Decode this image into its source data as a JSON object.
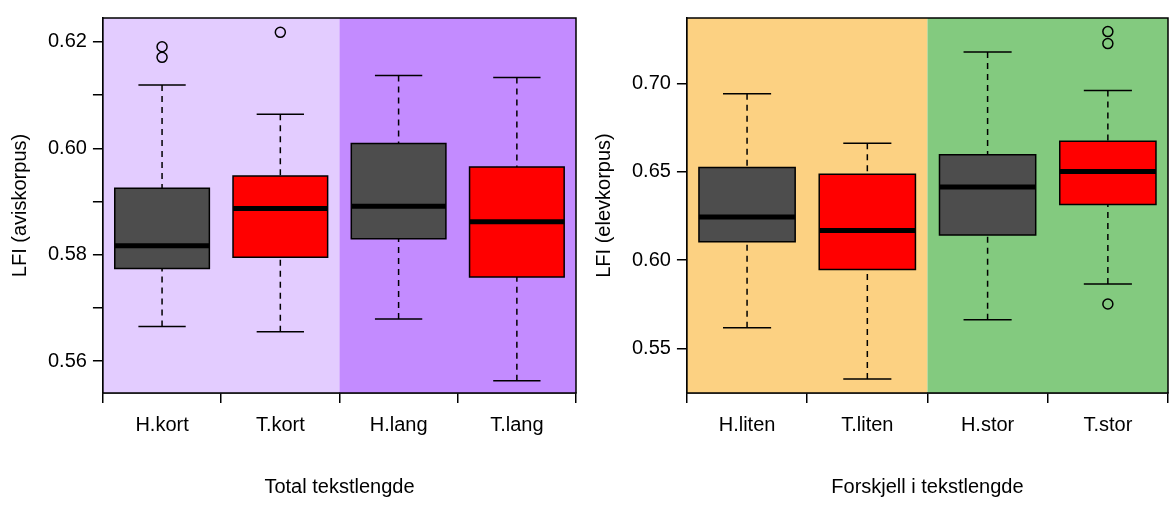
{
  "chart_data": [
    {
      "type": "box",
      "categories": [
        "H.kort",
        "T.kort",
        "H.lang",
        "T.lang"
      ],
      "boxes": [
        {
          "low": 0.5665,
          "q1": 0.5774,
          "median": 0.5817,
          "q3": 0.5925,
          "high": 0.6119,
          "outliers": [
            0.6171,
            0.6191
          ]
        },
        {
          "low": 0.5655,
          "q1": 0.5795,
          "median": 0.5887,
          "q3": 0.5948,
          "high": 0.6064,
          "outliers": [
            0.6218
          ]
        },
        {
          "low": 0.5679,
          "q1": 0.583,
          "median": 0.5891,
          "q3": 0.6009,
          "high": 0.6137
        },
        {
          "low": 0.5563,
          "q1": 0.5758,
          "median": 0.5862,
          "q3": 0.5965,
          "high": 0.6133
        }
      ],
      "colors": [
        "#4d4d4d",
        "#ff0000",
        "#4d4d4d",
        "#ff0000"
      ],
      "line_style": "dashed",
      "xlabel": "Total tekstlengde",
      "ylabel": "LFI (aviskorpus)",
      "ylim": [
        0.554,
        0.6245
      ],
      "yticks": [
        0.56,
        {
          "value": 0.57,
          "label": null
        },
        0.58,
        {
          "value": 0.59,
          "label": null
        },
        {
          "value": 0.6,
          "label": "0.60"
        },
        {
          "value": 0.61,
          "label": null
        },
        0.62
      ],
      "bands": [
        {
          "axis": "x",
          "from": "H.kort",
          "to": "T.kort",
          "color": "#e3ccff"
        },
        {
          "axis": "x",
          "from": "H.lang",
          "to": "T.lang",
          "color": "#c38bff"
        }
      ]
    },
    {
      "type": "box",
      "categories": [
        "H.liten",
        "T.liten",
        "H.stor",
        "T.stor"
      ],
      "boxes": [
        {
          "low": 0.5616,
          "q1": 0.6103,
          "median": 0.6244,
          "q3": 0.6524,
          "high": 0.6942
        },
        {
          "low": 0.5326,
          "q1": 0.5946,
          "median": 0.6167,
          "q3": 0.6486,
          "high": 0.6662
        },
        {
          "low": 0.5662,
          "q1": 0.6142,
          "median": 0.6414,
          "q3": 0.6596,
          "high": 0.7178
        },
        {
          "low": 0.5865,
          "q1": 0.6314,
          "median": 0.6501,
          "q3": 0.6673,
          "high": 0.6961,
          "outliers": [
            0.7294,
            0.7226,
            0.5751
          ]
        }
      ],
      "colors": [
        "#4d4d4d",
        "#ff0000",
        "#4d4d4d",
        "#ff0000"
      ],
      "line_style": "dashed",
      "xlabel": "Forskjell i tekstlengde",
      "ylabel": "LFI (elevkorpus)",
      "ylim": [
        0.5247,
        0.7371
      ],
      "yticks": [
        0.55,
        {
          "value": 0.6,
          "label": "0.60"
        },
        0.65,
        {
          "value": 0.7,
          "label": "0.70"
        }
      ],
      "bands": [
        {
          "axis": "x",
          "from": "H.liten",
          "to": "T.liten",
          "color": "#fcd182"
        },
        {
          "axis": "x",
          "from": "H.stor",
          "to": "T.stor",
          "color": "#83ca7f"
        }
      ]
    }
  ]
}
